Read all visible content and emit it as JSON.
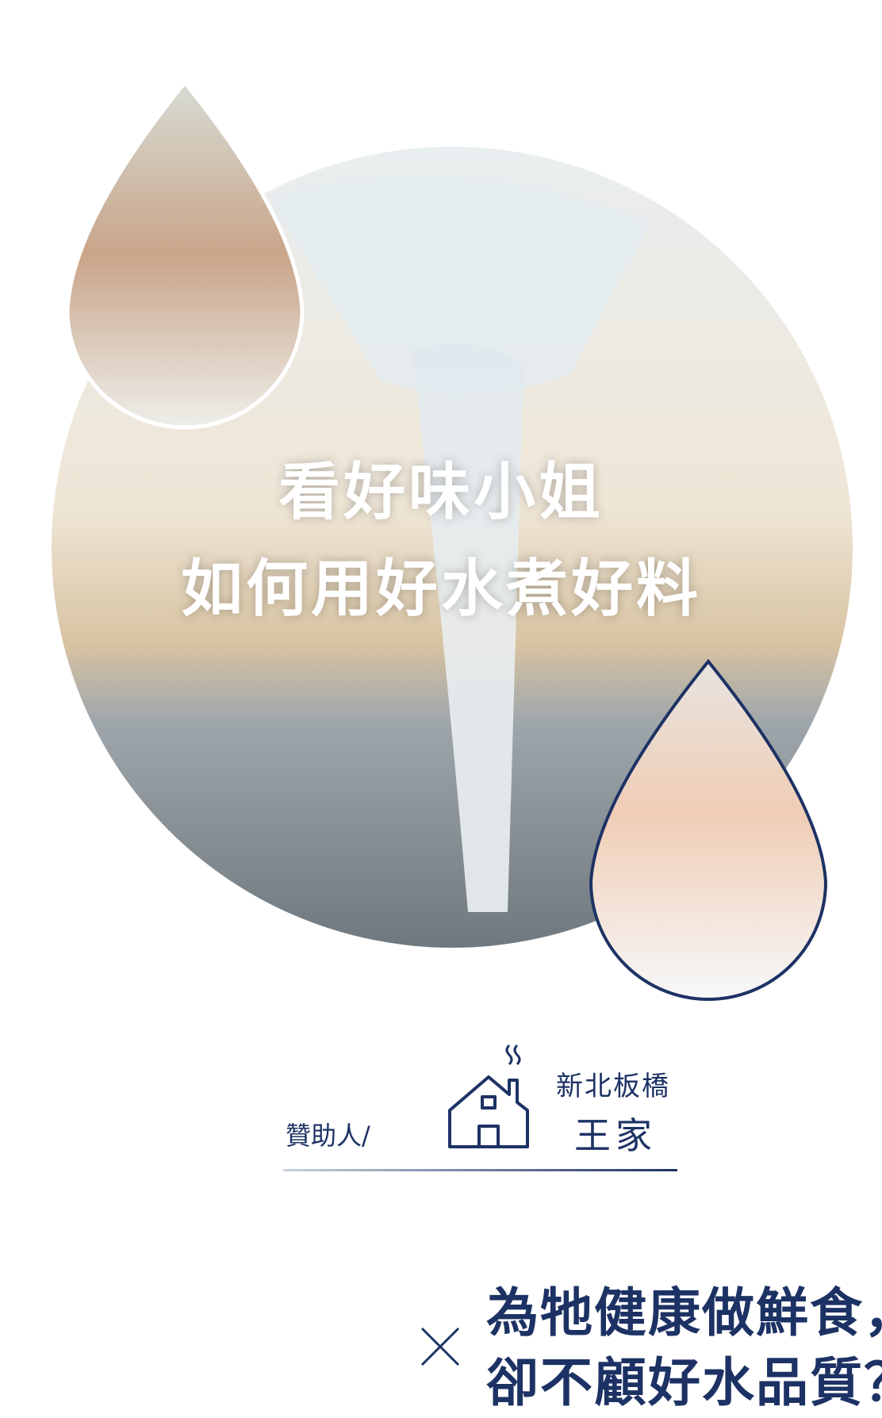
{
  "hero": {
    "title_lines": [
      "看好味小姐",
      "如何用好水煮好料"
    ]
  },
  "sponsor": {
    "label": "贊助人/",
    "location": "新北板橋",
    "family": "王家"
  },
  "headline": {
    "lines": [
      "為牠健康做鮮食，",
      "卻不顧好水品質？"
    ]
  }
}
